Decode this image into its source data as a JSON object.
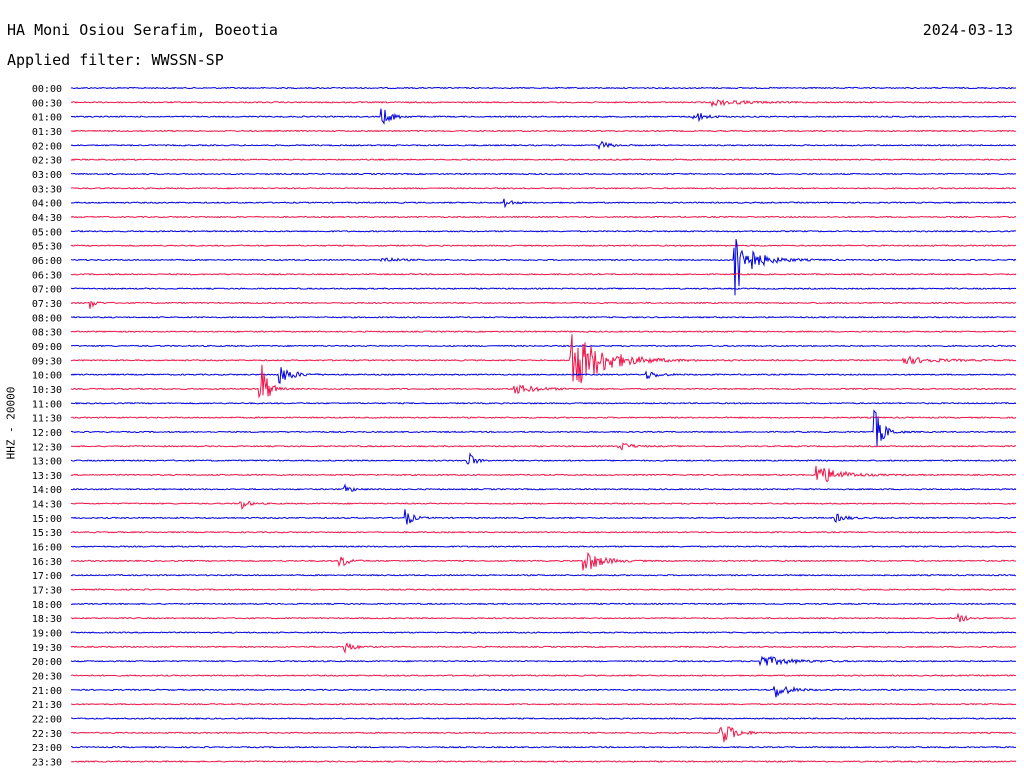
{
  "header": {
    "station": "HA Moni Osiou Serafim, Boeotia",
    "date": "2024-03-13",
    "filter": "Applied filter: WWSSN-SP"
  },
  "chart_data": {
    "type": "line",
    "ylabel": "HHZ - 20000",
    "times": [
      "00:00",
      "00:30",
      "01:00",
      "01:30",
      "02:00",
      "02:30",
      "03:00",
      "03:30",
      "04:00",
      "04:30",
      "05:00",
      "05:30",
      "06:00",
      "06:30",
      "07:00",
      "07:30",
      "08:00",
      "08:30",
      "09:00",
      "09:30",
      "10:00",
      "10:30",
      "11:00",
      "11:30",
      "12:00",
      "12:30",
      "13:00",
      "13:30",
      "14:00",
      "14:30",
      "15:00",
      "15:30",
      "16:00",
      "16:30",
      "17:00",
      "17:30",
      "18:00",
      "18:30",
      "19:00",
      "19:30",
      "20:00",
      "20:30",
      "21:00",
      "21:30",
      "22:00",
      "22:30",
      "23:00",
      "23:30"
    ],
    "colors": [
      "#0000e0",
      "#f0164a"
    ],
    "events": [
      {
        "row": 1,
        "x": 0.68,
        "amp": 3,
        "width": 0.03
      },
      {
        "row": 2,
        "x": 0.33,
        "amp": 8,
        "width": 0.01
      },
      {
        "row": 2,
        "x": 0.66,
        "amp": 6,
        "width": 0.01
      },
      {
        "row": 4,
        "x": 0.56,
        "amp": 4,
        "width": 0.01
      },
      {
        "row": 8,
        "x": 0.46,
        "amp": 5,
        "width": 0.006
      },
      {
        "row": 12,
        "x": 0.703,
        "amp": 62,
        "width": 0.005
      },
      {
        "row": 12,
        "x": 0.71,
        "amp": 14,
        "width": 0.02
      },
      {
        "row": 12,
        "x": 0.33,
        "amp": 3,
        "width": 0.012
      },
      {
        "row": 15,
        "x": 0.02,
        "amp": 6,
        "width": 0.005
      },
      {
        "row": 19,
        "x": 0.53,
        "amp": 32,
        "width": 0.03
      },
      {
        "row": 19,
        "x": 0.88,
        "amp": 4,
        "width": 0.03
      },
      {
        "row": 20,
        "x": 0.222,
        "amp": 9,
        "width": 0.012
      },
      {
        "row": 20,
        "x": 0.61,
        "amp": 4,
        "width": 0.012
      },
      {
        "row": 21,
        "x": 0.2,
        "amp": 40,
        "width": 0.006
      },
      {
        "row": 21,
        "x": 0.47,
        "amp": 5,
        "width": 0.02
      },
      {
        "row": 24,
        "x": 0.851,
        "amp": 22,
        "width": 0.008
      },
      {
        "row": 25,
        "x": 0.58,
        "amp": 5,
        "width": 0.01
      },
      {
        "row": 26,
        "x": 0.42,
        "amp": 10,
        "width": 0.006
      },
      {
        "row": 27,
        "x": 0.79,
        "amp": 11,
        "width": 0.02
      },
      {
        "row": 28,
        "x": 0.29,
        "amp": 4,
        "width": 0.008
      },
      {
        "row": 29,
        "x": 0.18,
        "amp": 7,
        "width": 0.006
      },
      {
        "row": 30,
        "x": 0.355,
        "amp": 9,
        "width": 0.006
      },
      {
        "row": 30,
        "x": 0.81,
        "amp": 4,
        "width": 0.01
      },
      {
        "row": 33,
        "x": 0.285,
        "amp": 8,
        "width": 0.007
      },
      {
        "row": 33,
        "x": 0.543,
        "amp": 13,
        "width": 0.015
      },
      {
        "row": 37,
        "x": 0.94,
        "amp": 5,
        "width": 0.007
      },
      {
        "row": 39,
        "x": 0.29,
        "amp": 6,
        "width": 0.008
      },
      {
        "row": 40,
        "x": 0.73,
        "amp": 6,
        "width": 0.025
      },
      {
        "row": 42,
        "x": 0.745,
        "amp": 9,
        "width": 0.012
      },
      {
        "row": 45,
        "x": 0.688,
        "amp": 13,
        "width": 0.012
      }
    ]
  }
}
